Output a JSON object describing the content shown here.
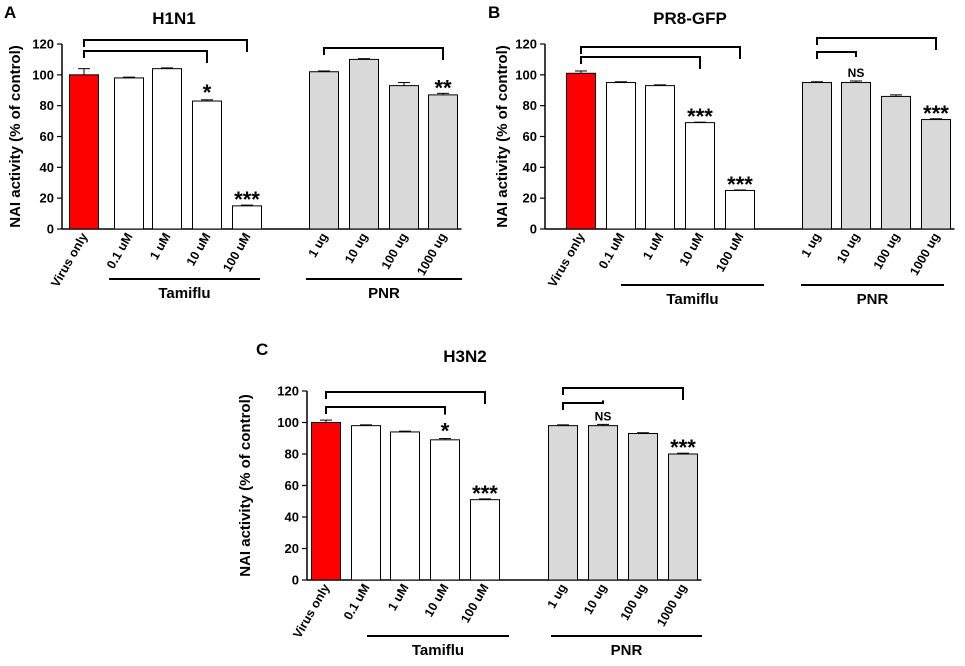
{
  "figure": {
    "colors": {
      "control": "#ff0000",
      "tamiflu": "#ffffff",
      "pnr": "#d9d9d9",
      "ink": "#000000"
    }
  },
  "chart_data": [
    {
      "panel": "A",
      "type": "bar",
      "title": "H1N1",
      "ylabel": "NAI activity (% of control)",
      "ylim": [
        0,
        120
      ],
      "yticks": [
        0,
        20,
        40,
        60,
        80,
        100,
        120
      ],
      "categories": [
        "Virus only",
        "0.1 uM",
        "1 uM",
        "10 uM",
        "100 uM",
        "1 ug",
        "10 ug",
        "100 ug",
        "1000 ug"
      ],
      "values": [
        100,
        98,
        104,
        83,
        15,
        102,
        110,
        93,
        87
      ],
      "errors": [
        4,
        0.5,
        0.5,
        0.8,
        0.5,
        0.5,
        0.5,
        2,
        1
      ],
      "groups": [
        {
          "label": "Tamiflu",
          "members": [
            1,
            2,
            3,
            4
          ]
        },
        {
          "label": "PNR",
          "members": [
            5,
            6,
            7,
            8
          ]
        }
      ],
      "annotations": [
        {
          "bar": 3,
          "text": "*"
        },
        {
          "bar": 4,
          "text": "***"
        },
        {
          "bar": 8,
          "text": "**"
        }
      ]
    },
    {
      "panel": "B",
      "type": "bar",
      "title": "PR8-GFP",
      "ylabel": "NAI activity (% of control)",
      "ylim": [
        0,
        120
      ],
      "yticks": [
        0,
        20,
        40,
        60,
        80,
        100,
        120
      ],
      "categories": [
        "Virus only",
        "0.1 uM",
        "1 uM",
        "10 uM",
        "100 uM",
        "1 ug",
        "10 ug",
        "100 ug",
        "1000 ug"
      ],
      "values": [
        101,
        95,
        93,
        69,
        25,
        95,
        95,
        86,
        71
      ],
      "errors": [
        1.5,
        0.5,
        0.5,
        0.3,
        0.3,
        0.5,
        1,
        1,
        0.5
      ],
      "groups": [
        {
          "label": "Tamiflu",
          "members": [
            1,
            2,
            3,
            4
          ]
        },
        {
          "label": "PNR",
          "members": [
            5,
            6,
            7,
            8
          ]
        }
      ],
      "annotations": [
        {
          "bar": 3,
          "text": "***"
        },
        {
          "bar": 4,
          "text": "***"
        },
        {
          "bar": 6,
          "text": "NS"
        },
        {
          "bar": 8,
          "text": "***"
        }
      ]
    },
    {
      "panel": "C",
      "type": "bar",
      "title": "H3N2",
      "ylabel": "NAI activity (% of control)",
      "ylim": [
        0,
        120
      ],
      "yticks": [
        0,
        20,
        40,
        60,
        80,
        100,
        120
      ],
      "categories": [
        "Virus only",
        "0.1 uM",
        "1 uM",
        "10 uM",
        "100 uM",
        "1 ug",
        "10 ug",
        "100 ug",
        "1000 ug"
      ],
      "values": [
        100,
        98,
        94,
        89,
        51,
        98,
        98,
        93,
        80
      ],
      "errors": [
        1.5,
        0.5,
        0.5,
        0.8,
        0.5,
        0.5,
        0.8,
        0.5,
        0.5
      ],
      "groups": [
        {
          "label": "Tamiflu",
          "members": [
            1,
            2,
            3,
            4
          ]
        },
        {
          "label": "PNR",
          "members": [
            5,
            6,
            7,
            8
          ]
        }
      ],
      "annotations": [
        {
          "bar": 3,
          "text": "*"
        },
        {
          "bar": 4,
          "text": "***"
        },
        {
          "bar": 6,
          "text": "NS"
        },
        {
          "bar": 8,
          "text": "***"
        }
      ]
    }
  ]
}
